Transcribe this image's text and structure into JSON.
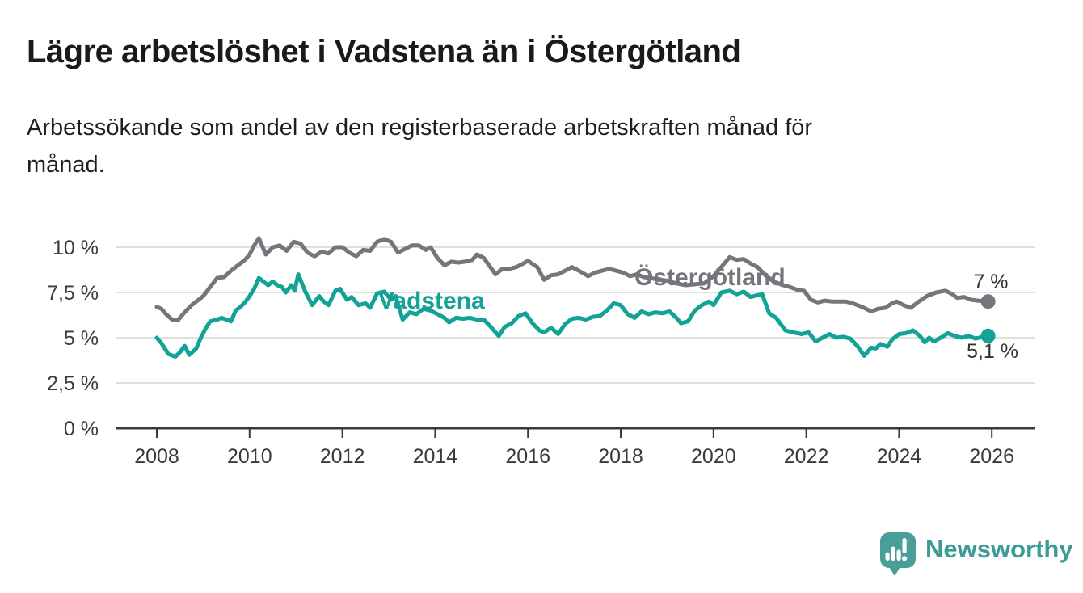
{
  "title": "Lägre arbetslöshet i Vadstena än i Östergötland",
  "subtitle": "Arbetssökande som andel av den registerbaserade arbetskraften månad för\nmånad.",
  "logo": {
    "text": "Newsworthy",
    "icon": "newsworthy-speech-bubble-bar-chart-icon",
    "text_color": "#3d9b95",
    "icon_color": "#4a9e99"
  },
  "colors": {
    "grid": "#e0e0e0",
    "axis": "#3a3a3a",
    "tick_text": "#3a3a3a",
    "value_label_text": "#333333"
  },
  "chart_data": {
    "type": "line",
    "unit": "percent of registered labour force",
    "grid": true,
    "legend_position": "inline-series-labels",
    "x_axis": {
      "tick_values": [
        2008,
        2010,
        2012,
        2014,
        2016,
        2018,
        2020,
        2022,
        2024,
        2026
      ],
      "tick_labels": [
        "2008",
        "2010",
        "2012",
        "2014",
        "2016",
        "2018",
        "2020",
        "2022",
        "2024",
        "2026"
      ],
      "range_years": [
        2007.1,
        2026.9
      ]
    },
    "y_axis": {
      "ticks": [
        {
          "value": 10,
          "label": "10 %"
        },
        {
          "value": 7.5,
          "label": "7,5 %"
        },
        {
          "value": 5,
          "label": "5 %"
        },
        {
          "value": 2.5,
          "label": "2,5 %"
        },
        {
          "value": 0,
          "label": "0 %"
        }
      ],
      "range": [
        0,
        10.7
      ]
    },
    "series": [
      {
        "name": "Östergötland",
        "color": "#75757b",
        "end_label": "7 %",
        "last_value": 7.0,
        "points": [
          [
            2008.0,
            6.7
          ],
          [
            2008.1,
            6.6
          ],
          [
            2008.2,
            6.3
          ],
          [
            2008.33,
            6.0
          ],
          [
            2008.45,
            5.95
          ],
          [
            2008.6,
            6.4
          ],
          [
            2008.75,
            6.8
          ],
          [
            2008.9,
            7.1
          ],
          [
            2009.0,
            7.3
          ],
          [
            2009.15,
            7.8
          ],
          [
            2009.3,
            8.3
          ],
          [
            2009.45,
            8.35
          ],
          [
            2009.6,
            8.7
          ],
          [
            2009.75,
            9.0
          ],
          [
            2009.9,
            9.3
          ],
          [
            2010.0,
            9.6
          ],
          [
            2010.1,
            10.1
          ],
          [
            2010.2,
            10.5
          ],
          [
            2010.35,
            9.6
          ],
          [
            2010.5,
            10.0
          ],
          [
            2010.65,
            10.1
          ],
          [
            2010.8,
            9.8
          ],
          [
            2010.95,
            10.3
          ],
          [
            2011.1,
            10.2
          ],
          [
            2011.25,
            9.7
          ],
          [
            2011.4,
            9.5
          ],
          [
            2011.55,
            9.75
          ],
          [
            2011.7,
            9.65
          ],
          [
            2011.85,
            10.0
          ],
          [
            2012.0,
            10.0
          ],
          [
            2012.15,
            9.7
          ],
          [
            2012.3,
            9.5
          ],
          [
            2012.45,
            9.85
          ],
          [
            2012.6,
            9.8
          ],
          [
            2012.75,
            10.3
          ],
          [
            2012.9,
            10.45
          ],
          [
            2013.05,
            10.3
          ],
          [
            2013.2,
            9.7
          ],
          [
            2013.35,
            9.9
          ],
          [
            2013.5,
            10.1
          ],
          [
            2013.65,
            10.1
          ],
          [
            2013.8,
            9.85
          ],
          [
            2013.9,
            10.0
          ],
          [
            2014.05,
            9.4
          ],
          [
            2014.2,
            9.0
          ],
          [
            2014.35,
            9.2
          ],
          [
            2014.5,
            9.15
          ],
          [
            2014.65,
            9.2
          ],
          [
            2014.8,
            9.3
          ],
          [
            2014.9,
            9.6
          ],
          [
            2015.05,
            9.4
          ],
          [
            2015.3,
            8.5
          ],
          [
            2015.45,
            8.8
          ],
          [
            2015.6,
            8.8
          ],
          [
            2015.75,
            8.9
          ],
          [
            2015.9,
            9.1
          ],
          [
            2016.0,
            9.25
          ],
          [
            2016.2,
            8.9
          ],
          [
            2016.35,
            8.2
          ],
          [
            2016.5,
            8.45
          ],
          [
            2016.65,
            8.5
          ],
          [
            2016.8,
            8.7
          ],
          [
            2016.95,
            8.9
          ],
          [
            2017.1,
            8.7
          ],
          [
            2017.3,
            8.4
          ],
          [
            2017.45,
            8.6
          ],
          [
            2017.6,
            8.7
          ],
          [
            2017.75,
            8.8
          ],
          [
            2017.9,
            8.7
          ],
          [
            2018.05,
            8.6
          ],
          [
            2018.2,
            8.4
          ],
          [
            2018.35,
            8.5
          ],
          [
            2018.5,
            8.35
          ],
          [
            2018.65,
            8.3
          ],
          [
            2018.8,
            8.2
          ],
          [
            2019.0,
            8.15
          ],
          [
            2019.2,
            8.0
          ],
          [
            2019.4,
            7.9
          ],
          [
            2019.6,
            7.95
          ],
          [
            2019.8,
            8.0
          ],
          [
            2020.0,
            8.4
          ],
          [
            2020.2,
            9.0
          ],
          [
            2020.35,
            9.45
          ],
          [
            2020.5,
            9.3
          ],
          [
            2020.65,
            9.35
          ],
          [
            2020.8,
            9.1
          ],
          [
            2020.95,
            8.9
          ],
          [
            2021.1,
            8.5
          ],
          [
            2021.3,
            8.1
          ],
          [
            2021.5,
            7.9
          ],
          [
            2021.65,
            7.8
          ],
          [
            2021.8,
            7.65
          ],
          [
            2021.95,
            7.6
          ],
          [
            2022.1,
            7.1
          ],
          [
            2022.25,
            6.95
          ],
          [
            2022.4,
            7.05
          ],
          [
            2022.55,
            7.0
          ],
          [
            2022.7,
            7.0
          ],
          [
            2022.85,
            7.0
          ],
          [
            2023.0,
            6.9
          ],
          [
            2023.2,
            6.7
          ],
          [
            2023.4,
            6.45
          ],
          [
            2023.55,
            6.6
          ],
          [
            2023.7,
            6.65
          ],
          [
            2023.85,
            6.9
          ],
          [
            2023.95,
            7.0
          ],
          [
            2024.1,
            6.8
          ],
          [
            2024.25,
            6.65
          ],
          [
            2024.4,
            6.95
          ],
          [
            2024.6,
            7.3
          ],
          [
            2024.8,
            7.5
          ],
          [
            2025.0,
            7.6
          ],
          [
            2025.15,
            7.4
          ],
          [
            2025.25,
            7.2
          ],
          [
            2025.4,
            7.25
          ],
          [
            2025.55,
            7.1
          ],
          [
            2025.7,
            7.05
          ],
          [
            2025.92,
            7.0
          ]
        ]
      },
      {
        "name": "Vadstena",
        "color": "#12a296",
        "end_label": "5,1 %",
        "last_value": 5.1,
        "points": [
          [
            2008.0,
            5.0
          ],
          [
            2008.1,
            4.7
          ],
          [
            2008.25,
            4.1
          ],
          [
            2008.4,
            3.95
          ],
          [
            2008.5,
            4.2
          ],
          [
            2008.6,
            4.55
          ],
          [
            2008.7,
            4.05
          ],
          [
            2008.85,
            4.4
          ],
          [
            2008.95,
            5.0
          ],
          [
            2009.05,
            5.5
          ],
          [
            2009.15,
            5.9
          ],
          [
            2009.3,
            6.0
          ],
          [
            2009.4,
            6.1
          ],
          [
            2009.5,
            6.0
          ],
          [
            2009.6,
            5.9
          ],
          [
            2009.7,
            6.5
          ],
          [
            2009.8,
            6.7
          ],
          [
            2009.9,
            6.95
          ],
          [
            2010.0,
            7.3
          ],
          [
            2010.1,
            7.7
          ],
          [
            2010.2,
            8.3
          ],
          [
            2010.3,
            8.1
          ],
          [
            2010.4,
            7.9
          ],
          [
            2010.5,
            8.1
          ],
          [
            2010.6,
            7.9
          ],
          [
            2010.7,
            7.8
          ],
          [
            2010.78,
            7.5
          ],
          [
            2010.9,
            7.9
          ],
          [
            2010.97,
            7.6
          ],
          [
            2011.05,
            8.5
          ],
          [
            2011.2,
            7.55
          ],
          [
            2011.35,
            6.8
          ],
          [
            2011.5,
            7.3
          ],
          [
            2011.6,
            7.0
          ],
          [
            2011.7,
            6.8
          ],
          [
            2011.85,
            7.6
          ],
          [
            2011.95,
            7.7
          ],
          [
            2012.1,
            7.1
          ],
          [
            2012.2,
            7.25
          ],
          [
            2012.35,
            6.8
          ],
          [
            2012.5,
            6.9
          ],
          [
            2012.6,
            6.65
          ],
          [
            2012.75,
            7.45
          ],
          [
            2012.9,
            7.55
          ],
          [
            2013.05,
            7.1
          ],
          [
            2013.15,
            7.3
          ],
          [
            2013.3,
            6.0
          ],
          [
            2013.45,
            6.4
          ],
          [
            2013.6,
            6.3
          ],
          [
            2013.75,
            6.6
          ],
          [
            2013.9,
            6.5
          ],
          [
            2014.05,
            6.3
          ],
          [
            2014.2,
            6.1
          ],
          [
            2014.3,
            5.85
          ],
          [
            2014.45,
            6.1
          ],
          [
            2014.6,
            6.05
          ],
          [
            2014.75,
            6.1
          ],
          [
            2014.9,
            6.0
          ],
          [
            2015.05,
            6.0
          ],
          [
            2015.2,
            5.6
          ],
          [
            2015.37,
            5.1
          ],
          [
            2015.5,
            5.6
          ],
          [
            2015.65,
            5.8
          ],
          [
            2015.8,
            6.2
          ],
          [
            2015.95,
            6.35
          ],
          [
            2016.1,
            5.8
          ],
          [
            2016.25,
            5.4
          ],
          [
            2016.35,
            5.3
          ],
          [
            2016.5,
            5.55
          ],
          [
            2016.65,
            5.2
          ],
          [
            2016.8,
            5.75
          ],
          [
            2016.95,
            6.05
          ],
          [
            2017.1,
            6.1
          ],
          [
            2017.25,
            6.0
          ],
          [
            2017.4,
            6.15
          ],
          [
            2017.55,
            6.2
          ],
          [
            2017.7,
            6.5
          ],
          [
            2017.85,
            6.9
          ],
          [
            2018.0,
            6.8
          ],
          [
            2018.15,
            6.3
          ],
          [
            2018.3,
            6.1
          ],
          [
            2018.45,
            6.45
          ],
          [
            2018.6,
            6.3
          ],
          [
            2018.75,
            6.4
          ],
          [
            2018.9,
            6.35
          ],
          [
            2019.05,
            6.45
          ],
          [
            2019.2,
            6.1
          ],
          [
            2019.3,
            5.8
          ],
          [
            2019.45,
            5.9
          ],
          [
            2019.6,
            6.5
          ],
          [
            2019.75,
            6.8
          ],
          [
            2019.9,
            7.0
          ],
          [
            2020.0,
            6.8
          ],
          [
            2020.17,
            7.5
          ],
          [
            2020.35,
            7.6
          ],
          [
            2020.5,
            7.4
          ],
          [
            2020.65,
            7.55
          ],
          [
            2020.8,
            7.25
          ],
          [
            2020.95,
            7.35
          ],
          [
            2021.05,
            7.4
          ],
          [
            2021.2,
            6.35
          ],
          [
            2021.35,
            6.1
          ],
          [
            2021.55,
            5.4
          ],
          [
            2021.7,
            5.3
          ],
          [
            2021.9,
            5.2
          ],
          [
            2022.05,
            5.3
          ],
          [
            2022.2,
            4.8
          ],
          [
            2022.35,
            5.0
          ],
          [
            2022.5,
            5.2
          ],
          [
            2022.65,
            5.0
          ],
          [
            2022.8,
            5.05
          ],
          [
            2022.95,
            4.95
          ],
          [
            2023.1,
            4.55
          ],
          [
            2023.25,
            4.0
          ],
          [
            2023.4,
            4.45
          ],
          [
            2023.5,
            4.4
          ],
          [
            2023.6,
            4.65
          ],
          [
            2023.75,
            4.5
          ],
          [
            2023.85,
            4.9
          ],
          [
            2024.0,
            5.2
          ],
          [
            2024.15,
            5.25
          ],
          [
            2024.3,
            5.4
          ],
          [
            2024.45,
            5.1
          ],
          [
            2024.55,
            4.75
          ],
          [
            2024.65,
            5.0
          ],
          [
            2024.75,
            4.8
          ],
          [
            2024.9,
            5.0
          ],
          [
            2025.05,
            5.25
          ],
          [
            2025.2,
            5.1
          ],
          [
            2025.35,
            5.0
          ],
          [
            2025.5,
            5.1
          ],
          [
            2025.65,
            4.95
          ],
          [
            2025.8,
            5.05
          ],
          [
            2025.92,
            5.1
          ]
        ]
      }
    ]
  }
}
